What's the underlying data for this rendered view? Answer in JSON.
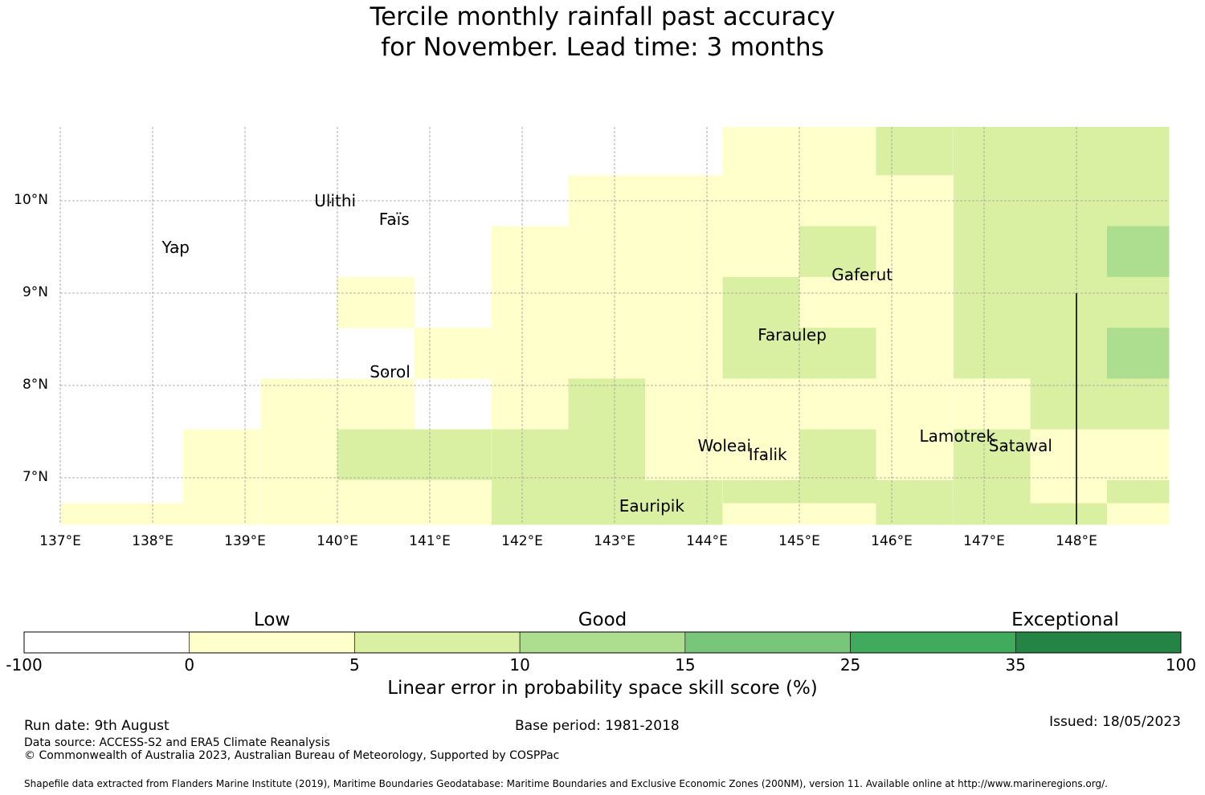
{
  "title": {
    "line1": "Tercile monthly rainfall past accuracy",
    "line2": "for November. Lead time: 3 months"
  },
  "map": {
    "lon_range": [
      137.0,
      149.0
    ],
    "lat_range": [
      6.45,
      10.8
    ],
    "lat_ticks": [
      {
        "value": 7,
        "label": "7°N"
      },
      {
        "value": 8,
        "label": "8°N"
      },
      {
        "value": 9,
        "label": "9°N"
      },
      {
        "value": 10,
        "label": "10°N"
      }
    ],
    "lon_ticks": [
      {
        "value": 137,
        "label": "137°E"
      },
      {
        "value": 138,
        "label": "138°E"
      },
      {
        "value": 139,
        "label": "139°E"
      },
      {
        "value": 140,
        "label": "140°E"
      },
      {
        "value": 141,
        "label": "141°E"
      },
      {
        "value": 142,
        "label": "142°E"
      },
      {
        "value": 143,
        "label": "143°E"
      },
      {
        "value": 144,
        "label": "144°E"
      },
      {
        "value": 145,
        "label": "145°E"
      },
      {
        "value": 146,
        "label": "146°E"
      },
      {
        "value": 147,
        "label": "147°E"
      },
      {
        "value": 148,
        "label": "148°E"
      }
    ],
    "grid": true,
    "boundary_line_lon": 148.0,
    "grid_origin_lon": 137.0,
    "grid_cell_deg": 0.833,
    "grid_rows_from_top_lat": 10.8,
    "skill_classes": {
      "0": "#ffffcc",
      "1": "#d9f0a3",
      "2": "#addd8e"
    },
    "skill_grid": [
      "-------------------------------------------------------------------------------------",
      "..........................00000000000000000000000000000000000000000000000000000000000",
      "...........................................................0000000000000011111111111"
    ],
    "cells": [
      {
        "lon": 144.17,
        "lat": 10.55,
        "c": 0
      },
      {
        "lon": 145.0,
        "lat": 10.55,
        "c": 0
      },
      {
        "lon": 145.83,
        "lat": 10.55,
        "c": 1
      },
      {
        "lon": 146.67,
        "lat": 10.55,
        "c": 1
      },
      {
        "lon": 147.5,
        "lat": 10.55,
        "c": 1
      },
      {
        "lon": 148.33,
        "lat": 10.55,
        "c": 1
      },
      {
        "lon": 142.5,
        "lat": 10.0,
        "c": 0
      },
      {
        "lon": 143.33,
        "lat": 10.0,
        "c": 0
      },
      {
        "lon": 144.17,
        "lat": 10.0,
        "c": 0
      },
      {
        "lon": 145.0,
        "lat": 10.0,
        "c": 0
      },
      {
        "lon": 145.83,
        "lat": 10.0,
        "c": 0
      },
      {
        "lon": 146.67,
        "lat": 10.0,
        "c": 1
      },
      {
        "lon": 147.5,
        "lat": 10.0,
        "c": 1
      },
      {
        "lon": 148.33,
        "lat": 10.0,
        "c": 1
      },
      {
        "lon": 141.67,
        "lat": 9.45,
        "c": 0
      },
      {
        "lon": 142.5,
        "lat": 9.45,
        "c": 0
      },
      {
        "lon": 143.33,
        "lat": 9.45,
        "c": 0
      },
      {
        "lon": 144.17,
        "lat": 9.45,
        "c": 0
      },
      {
        "lon": 145.0,
        "lat": 9.45,
        "c": 1
      },
      {
        "lon": 145.83,
        "lat": 9.45,
        "c": 0
      },
      {
        "lon": 146.67,
        "lat": 9.45,
        "c": 1
      },
      {
        "lon": 147.5,
        "lat": 9.45,
        "c": 1
      },
      {
        "lon": 148.33,
        "lat": 9.45,
        "c": 2
      },
      {
        "lon": 140.0,
        "lat": 8.9,
        "c": 0
      },
      {
        "lon": 141.67,
        "lat": 8.9,
        "c": 0
      },
      {
        "lon": 142.5,
        "lat": 8.9,
        "c": 0
      },
      {
        "lon": 143.33,
        "lat": 8.9,
        "c": 0
      },
      {
        "lon": 144.17,
        "lat": 8.9,
        "c": 1
      },
      {
        "lon": 145.0,
        "lat": 8.9,
        "c": 0
      },
      {
        "lon": 145.83,
        "lat": 8.9,
        "c": 0
      },
      {
        "lon": 146.67,
        "lat": 8.9,
        "c": 1
      },
      {
        "lon": 147.5,
        "lat": 8.9,
        "c": 1
      },
      {
        "lon": 148.33,
        "lat": 8.9,
        "c": 1
      },
      {
        "lon": 140.83,
        "lat": 8.35,
        "c": 0
      },
      {
        "lon": 141.67,
        "lat": 8.35,
        "c": 0
      },
      {
        "lon": 142.5,
        "lat": 8.35,
        "c": 0
      },
      {
        "lon": 143.33,
        "lat": 8.35,
        "c": 0
      },
      {
        "lon": 144.17,
        "lat": 8.35,
        "c": 1
      },
      {
        "lon": 145.0,
        "lat": 8.35,
        "c": 1
      },
      {
        "lon": 145.83,
        "lat": 8.35,
        "c": 0
      },
      {
        "lon": 146.67,
        "lat": 8.35,
        "c": 1
      },
      {
        "lon": 147.5,
        "lat": 8.35,
        "c": 1
      },
      {
        "lon": 148.33,
        "lat": 8.35,
        "c": 2
      },
      {
        "lon": 139.17,
        "lat": 7.8,
        "c": 0
      },
      {
        "lon": 140.0,
        "lat": 7.8,
        "c": 0
      },
      {
        "lon": 141.67,
        "lat": 7.8,
        "c": 0
      },
      {
        "lon": 142.5,
        "lat": 7.8,
        "c": 1
      },
      {
        "lon": 143.33,
        "lat": 7.8,
        "c": 0
      },
      {
        "lon": 144.17,
        "lat": 7.8,
        "c": 0
      },
      {
        "lon": 145.0,
        "lat": 7.8,
        "c": 0
      },
      {
        "lon": 145.83,
        "lat": 7.8,
        "c": 0
      },
      {
        "lon": 146.67,
        "lat": 7.8,
        "c": 0
      },
      {
        "lon": 147.5,
        "lat": 7.8,
        "c": 1
      },
      {
        "lon": 148.33,
        "lat": 7.8,
        "c": 1
      },
      {
        "lon": 138.33,
        "lat": 7.25,
        "c": 0
      },
      {
        "lon": 139.17,
        "lat": 7.25,
        "c": 0
      },
      {
        "lon": 140.0,
        "lat": 7.25,
        "c": 1
      },
      {
        "lon": 140.83,
        "lat": 7.25,
        "c": 1
      },
      {
        "lon": 141.67,
        "lat": 7.25,
        "c": 1
      },
      {
        "lon": 142.5,
        "lat": 7.25,
        "c": 1
      },
      {
        "lon": 143.33,
        "lat": 7.25,
        "c": 0
      },
      {
        "lon": 144.17,
        "lat": 7.25,
        "c": 0
      },
      {
        "lon": 145.0,
        "lat": 7.25,
        "c": 1
      },
      {
        "lon": 145.83,
        "lat": 7.25,
        "c": 0
      },
      {
        "lon": 146.67,
        "lat": 7.25,
        "c": 1
      },
      {
        "lon": 147.5,
        "lat": 7.25,
        "c": 0
      },
      {
        "lon": 148.33,
        "lat": 7.25,
        "c": 0
      },
      {
        "lon": 138.33,
        "lat": 6.7,
        "c": 0
      },
      {
        "lon": 139.17,
        "lat": 6.7,
        "c": 0
      },
      {
        "lon": 140.0,
        "lat": 6.7,
        "c": 0
      },
      {
        "lon": 140.83,
        "lat": 6.7,
        "c": 0
      },
      {
        "lon": 141.67,
        "lat": 6.7,
        "c": 1
      },
      {
        "lon": 142.5,
        "lat": 6.7,
        "c": 1
      },
      {
        "lon": 143.33,
        "lat": 6.7,
        "c": 1
      },
      {
        "lon": 144.17,
        "lat": 6.7,
        "c": 1
      },
      {
        "lon": 145.0,
        "lat": 6.7,
        "c": 1
      },
      {
        "lon": 145.83,
        "lat": 6.7,
        "c": 1
      },
      {
        "lon": 146.67,
        "lat": 6.7,
        "c": 1
      },
      {
        "lon": 147.5,
        "lat": 6.7,
        "c": 0
      },
      {
        "lon": 148.33,
        "lat": 6.7,
        "c": 1
      },
      {
        "lon": 137.0,
        "lat": 6.45,
        "c": 0
      },
      {
        "lon": 137.83,
        "lat": 6.45,
        "c": 0
      },
      {
        "lon": 139.17,
        "lat": 6.45,
        "c": 0
      },
      {
        "lon": 140.0,
        "lat": 6.45,
        "c": 0
      },
      {
        "lon": 140.83,
        "lat": 6.45,
        "c": 0
      },
      {
        "lon": 141.67,
        "lat": 6.45,
        "c": 1
      },
      {
        "lon": 142.5,
        "lat": 6.45,
        "c": 1
      },
      {
        "lon": 143.33,
        "lat": 6.45,
        "c": 1
      },
      {
        "lon": 144.17,
        "lat": 6.45,
        "c": 0
      },
      {
        "lon": 145.0,
        "lat": 6.45,
        "c": 0
      },
      {
        "lon": 145.83,
        "lat": 6.45,
        "c": 1
      },
      {
        "lon": 146.67,
        "lat": 6.45,
        "c": 1
      },
      {
        "lon": 147.5,
        "lat": 6.45,
        "c": 1
      },
      {
        "lon": 148.33,
        "lat": 6.45,
        "c": 0
      }
    ],
    "islands": [
      {
        "name": "Yap",
        "lon": 138.1,
        "lat": 9.5
      },
      {
        "name": "Ulithi",
        "lon": 139.75,
        "lat": 10.0
      },
      {
        "name": "Faïs",
        "lon": 140.45,
        "lat": 9.8
      },
      {
        "name": "Gaferut",
        "lon": 145.35,
        "lat": 9.2
      },
      {
        "name": "Faraulep",
        "lon": 144.55,
        "lat": 8.55
      },
      {
        "name": "Sorol",
        "lon": 140.35,
        "lat": 8.15
      },
      {
        "name": "Woleai",
        "lon": 143.9,
        "lat": 7.35
      },
      {
        "name": "Ifalik",
        "lon": 144.45,
        "lat": 7.25
      },
      {
        "name": "Lamotrek",
        "lon": 146.3,
        "lat": 7.45
      },
      {
        "name": "Satawal",
        "lon": 147.05,
        "lat": 7.35
      },
      {
        "name": "Eauripik",
        "lon": 143.05,
        "lat": 6.7
      }
    ]
  },
  "legend": {
    "categories": [
      "Low",
      "Good",
      "Exceptional"
    ],
    "ticks": [
      "-100",
      "0",
      "5",
      "10",
      "15",
      "25",
      "35",
      "100"
    ],
    "colors": [
      "#ffffff",
      "#ffffcc",
      "#d9f0a3",
      "#addd8e",
      "#78c679",
      "#41ab5d",
      "#238443"
    ],
    "title": "Linear error in probability space skill score (%)"
  },
  "footer": {
    "run_date": "Run date: 9th August",
    "base_period": "Base period: 1981-2018",
    "issued": "Issued: 18/05/2023",
    "data_source": "Data source: ACCESS-S2 and ERA5 Climate Reanalysis",
    "copyright": "© Commonwealth of Australia 2023, Australian Bureau of Meteorology, Supported by COSPPac",
    "shapefile": "Shapefile data extracted from Flanders Marine Institute (2019), Maritime Boundaries Geodatabase: Maritime Boundaries and Exclusive Economic Zones (200NM), version 11. Available online at http://www.marineregions.org/."
  }
}
